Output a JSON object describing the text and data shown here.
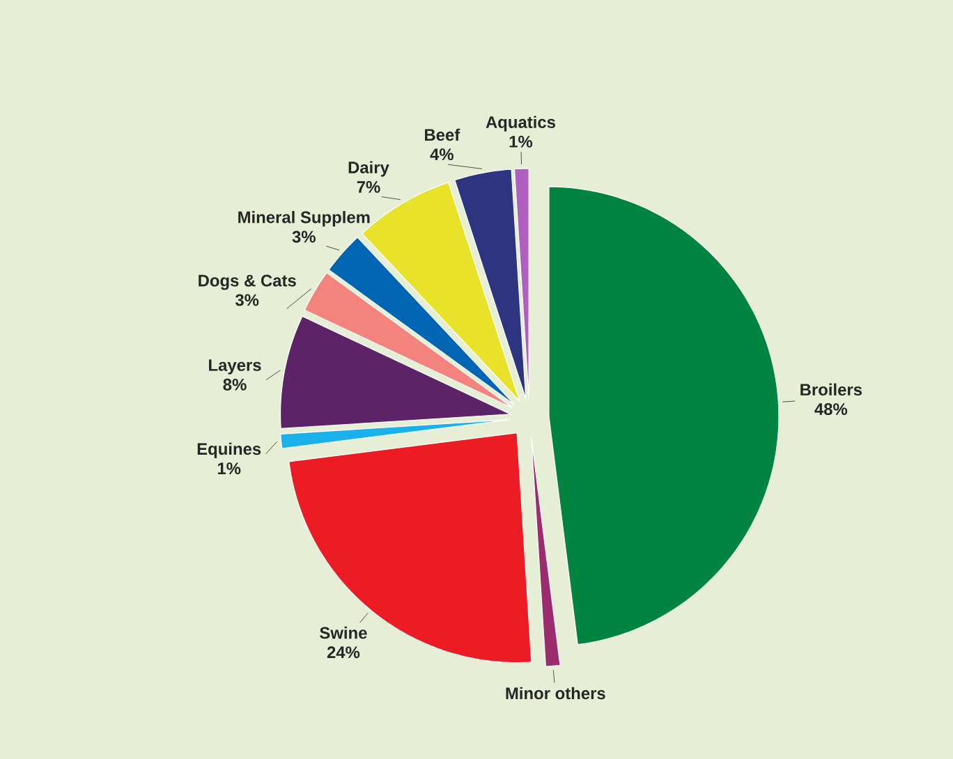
{
  "chart_data": {
    "type": "pie",
    "categories": [
      "Broilers",
      "Minor others",
      "Swine",
      "Equines",
      "Layers",
      "Dogs & Cats",
      "Mineral Supplem",
      "Dairy",
      "Beef",
      "Aquatics"
    ],
    "values": [
      48,
      1,
      24,
      1,
      8,
      3,
      3,
      7,
      4,
      1
    ],
    "value_labels": [
      "48%",
      null,
      "24%",
      "1%",
      "8%",
      "3%",
      "3%",
      "7%",
      "4%",
      "1%"
    ],
    "colors": [
      "#00843f",
      "#9b2d6e",
      "#ed1c24",
      "#1ab0ec",
      "#5c2467",
      "#f4827d",
      "#0066b3",
      "#e8e32a",
      "#2e3580",
      "#b05fc0"
    ]
  }
}
